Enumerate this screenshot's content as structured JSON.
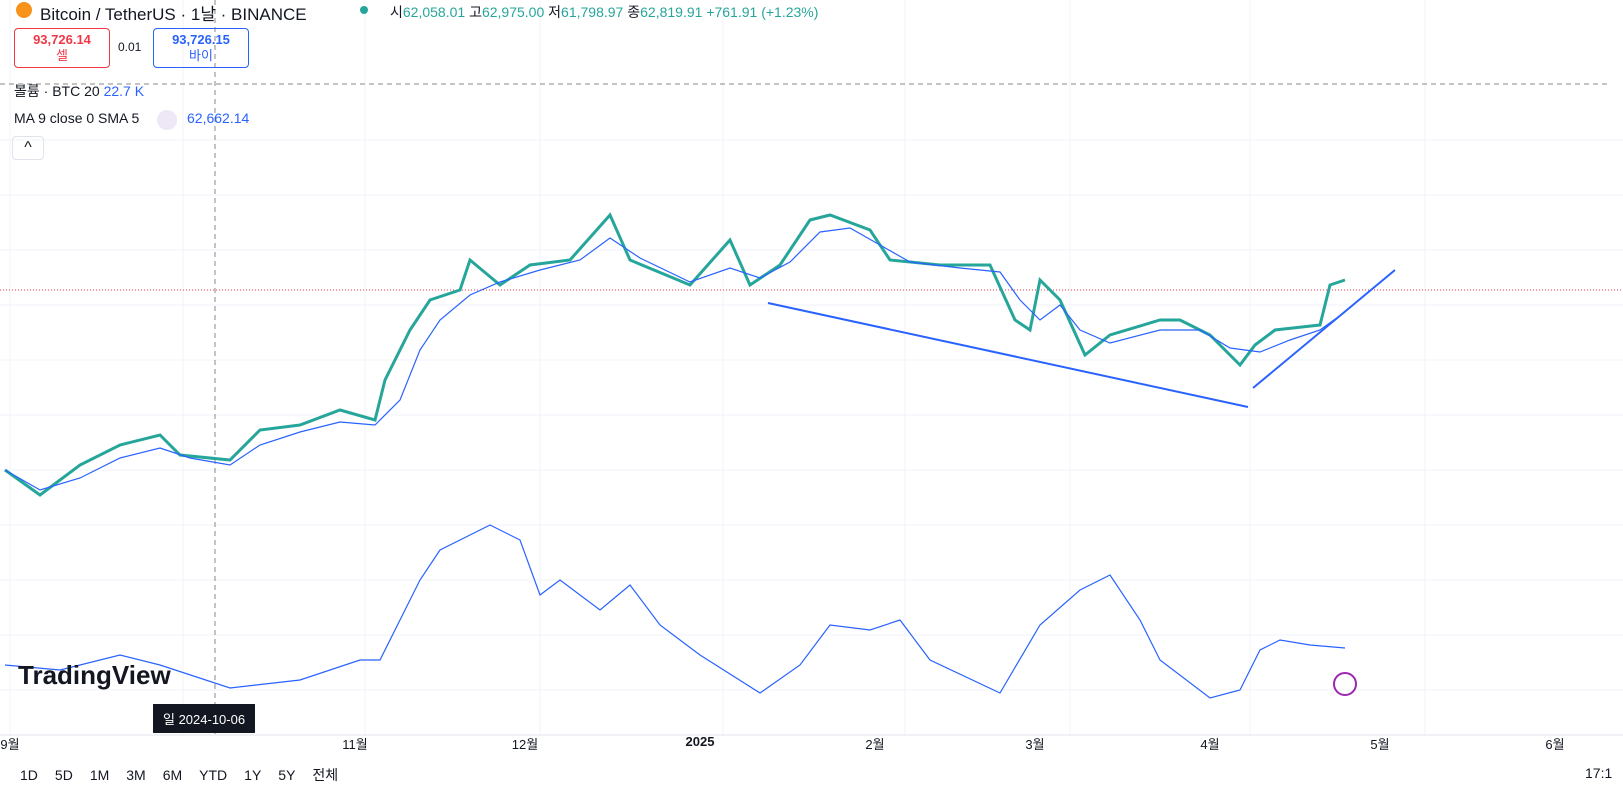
{
  "header": {
    "symbol": "Bitcoin / TetherUS · 1날 · BINANCE",
    "ohlc": [
      {
        "label": "시",
        "value": "62,058.01"
      },
      {
        "label": "고",
        "value": "62,975.00"
      },
      {
        "label": "저",
        "value": "61,798.97"
      },
      {
        "label": "종",
        "value": "62,819.91"
      }
    ],
    "change": "+761.91 (+1.23%)"
  },
  "trade": {
    "sell_price": "93,726.14",
    "sell_label": "셀",
    "spread": "0.01",
    "buy_price": "93,726.15",
    "buy_label": "바이"
  },
  "indicators": {
    "volume_label": "볼륨 · BTC 20",
    "volume_value": "22.7 K",
    "ma_label": "MA 9 close 0 SMA 5",
    "ma_value": "62,662.14"
  },
  "logo": "TradingView",
  "x_axis": [
    "9월",
    "11월",
    "12월",
    "2025",
    "2월",
    "3월",
    "4월",
    "5월",
    "6월"
  ],
  "crosshair_label": "일 2024-10-06",
  "ranges": [
    "1D",
    "5D",
    "1M",
    "3M",
    "6M",
    "YTD",
    "1Y",
    "5Y",
    "전체"
  ],
  "clock": "17:1"
}
